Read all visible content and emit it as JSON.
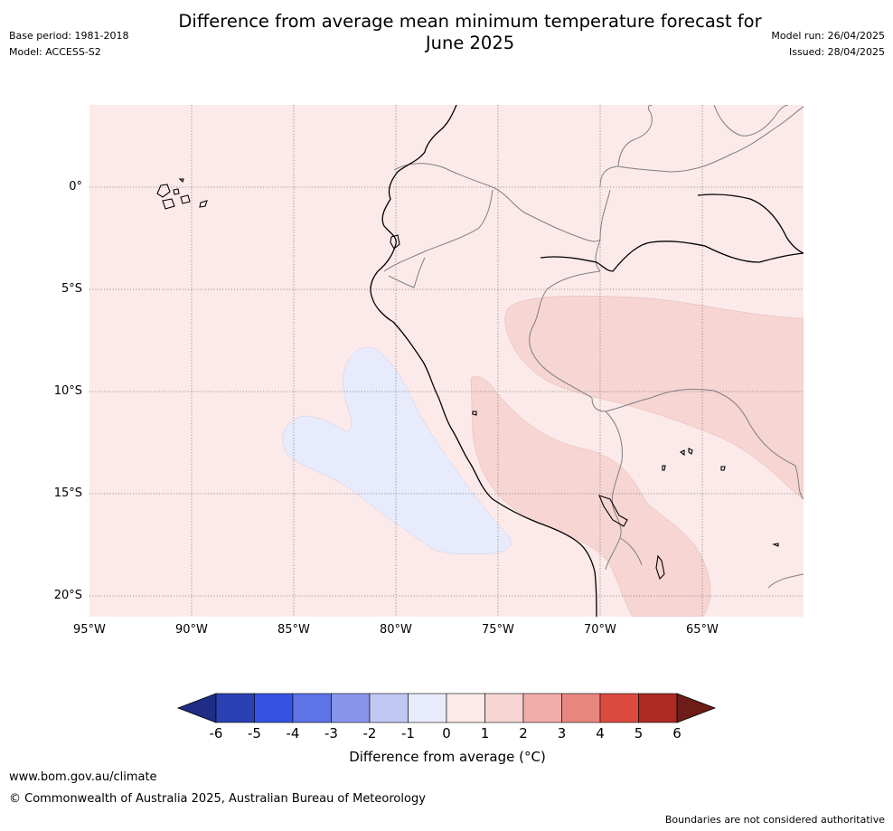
{
  "header": {
    "title_line1": "Difference from average mean minimum temperature forecast for",
    "title_line2": "June 2025",
    "base_period": "Base period: 1981-2018",
    "model": "Model: ACCESS-S2",
    "model_run": "Model run: 26/04/2025",
    "issued": "Issued: 28/04/2025"
  },
  "map": {
    "lat_labels": [
      "0°",
      "5°S",
      "10°S",
      "15°S",
      "20°S"
    ],
    "lon_labels": [
      "95°W",
      "90°W",
      "85°W",
      "80°W",
      "75°W",
      "70°W",
      "65°W"
    ]
  },
  "colorbar": {
    "ticks": [
      "-6",
      "-5",
      "-4",
      "-3",
      "-2",
      "-1",
      "0",
      "1",
      "2",
      "3",
      "4",
      "5",
      "6"
    ],
    "colors": [
      "#1f2d86",
      "#2a40b3",
      "#3553e0",
      "#5d73e6",
      "#8796eb",
      "#c2c8f4",
      "#e8ebfb",
      "#fbeae9",
      "#f6d5d3",
      "#f0aeaa",
      "#e8877f",
      "#dc4a3f",
      "#ab2a22",
      "#6e1c17"
    ],
    "label": "Difference from average (°C)"
  },
  "footer": {
    "url": "www.bom.gov.au/climate",
    "copyright": "© Commonwealth of Australia 2025, Australian Bureau of Meteorology",
    "disclaimer": "Boundaries are not considered authoritative"
  }
}
